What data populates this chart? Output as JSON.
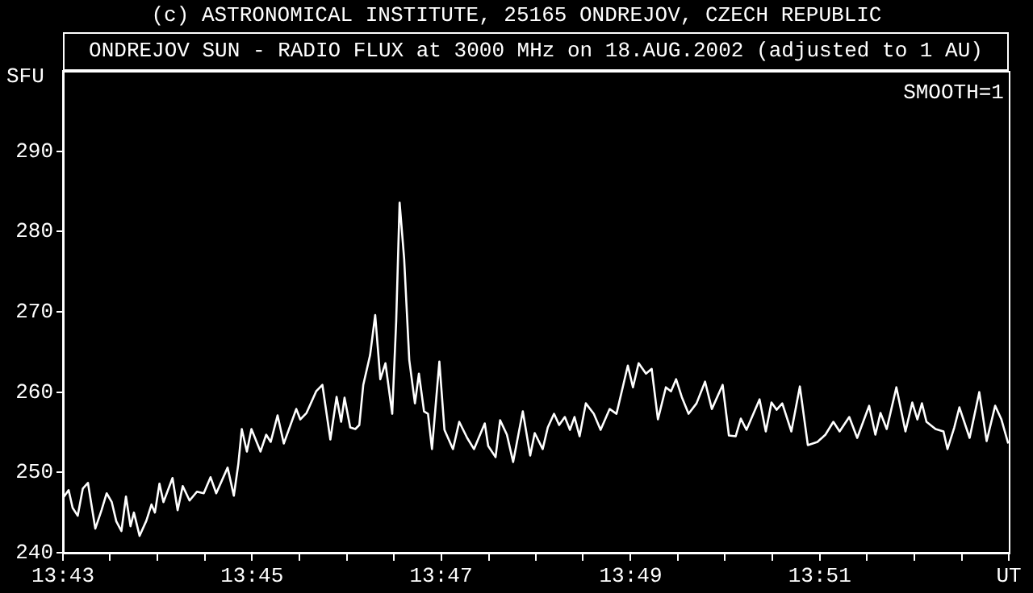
{
  "chart_data": {
    "type": "line",
    "title": "ONDREJOV SUN - RADIO FLUX at 3000 MHz on 18.AUG.2002 (adjusted to 1 AU)",
    "ylabel": "SFU",
    "annotations": [
      "(c) ASTRONOMICAL INSTITUTE, 25165 ONDREJOV, CZECH REPUBLIC",
      "SMOOTH=1"
    ],
    "xlim": [
      13.7167,
      13.8833
    ],
    "xticks": [
      {
        "value": 13.7167,
        "label": "13:43"
      },
      {
        "value": 13.725,
        "label": null
      },
      {
        "value": 13.7333,
        "label": null
      },
      {
        "value": 13.7417,
        "label": null
      },
      {
        "value": 13.75,
        "label": "13:45"
      },
      {
        "value": 13.7583,
        "label": null
      },
      {
        "value": 13.7667,
        "label": null
      },
      {
        "value": 13.775,
        "label": null
      },
      {
        "value": 13.7833,
        "label": "13:47"
      },
      {
        "value": 13.7917,
        "label": null
      },
      {
        "value": 13.8,
        "label": null
      },
      {
        "value": 13.8083,
        "label": null
      },
      {
        "value": 13.8167,
        "label": "13:49"
      },
      {
        "value": 13.825,
        "label": null
      },
      {
        "value": 13.8333,
        "label": null
      },
      {
        "value": 13.8417,
        "label": null
      },
      {
        "value": 13.85,
        "label": "13:51"
      },
      {
        "value": 13.8583,
        "label": null
      },
      {
        "value": 13.8667,
        "label": null
      },
      {
        "value": 13.875,
        "label": null
      },
      {
        "value": 13.8833,
        "label": "UT"
      }
    ],
    "ylim": [
      240,
      300
    ],
    "yticks": [
      240,
      250,
      260,
      270,
      280,
      290
    ],
    "grid": false,
    "legend": false,
    "marker": "none",
    "line_style": "solid",
    "series": [
      {
        "color": "#ffffff",
        "x": [
          13.7168,
          13.7177,
          13.7184,
          13.7193,
          13.7202,
          13.7211,
          13.7224,
          13.7235,
          13.7244,
          13.7253,
          13.7261,
          13.727,
          13.7278,
          13.7286,
          13.7292,
          13.7302,
          13.7314,
          13.7323,
          13.7329,
          13.7337,
          13.7344,
          13.736,
          13.7369,
          13.7378,
          13.739,
          13.7403,
          13.7415,
          13.7427,
          13.7437,
          13.7457,
          13.7468,
          13.7476,
          13.7482,
          13.7491,
          13.7499,
          13.7515,
          13.7525,
          13.7533,
          13.7545,
          13.7556,
          13.7578,
          13.7585,
          13.7596,
          13.7613,
          13.7624,
          13.7638,
          13.7649,
          13.7657,
          13.7663,
          13.7673,
          13.7682,
          13.7689,
          13.7696,
          13.7708,
          13.7717,
          13.7726,
          13.7735,
          13.7747,
          13.7754,
          13.776,
          13.7768,
          13.7777,
          13.7787,
          13.7794,
          13.7803,
          13.781,
          13.7817,
          13.783,
          13.7839,
          13.7854,
          13.7865,
          13.7879,
          13.7891,
          13.791,
          13.7916,
          13.7929,
          13.7937,
          13.7949,
          13.796,
          13.7977,
          13.799,
          13.7998,
          13.8012,
          13.8021,
          13.8032,
          13.8041,
          13.8051,
          13.806,
          13.8068,
          13.8077,
          13.8088,
          13.8102,
          13.8114,
          13.813,
          13.8142,
          13.8162,
          13.8171,
          13.8181,
          13.8194,
          13.8204,
          13.8215,
          13.8229,
          13.8238,
          13.8247,
          13.8257,
          13.8269,
          13.8283,
          13.8298,
          13.831,
          13.8329,
          13.834,
          13.8352,
          13.8361,
          13.8371,
          13.8394,
          13.8405,
          13.8415,
          13.8424,
          13.8434,
          13.845,
          13.8465,
          13.8479,
          13.8496,
          13.851,
          13.8524,
          13.8535,
          13.8552,
          13.8566,
          13.8587,
          13.8598,
          13.8607,
          13.8618,
          13.8635,
          13.8651,
          13.8663,
          13.8672,
          13.868,
          13.8688,
          13.8704,
          13.8718,
          13.8725,
          13.8737,
          13.8746,
          13.8764,
          13.8781,
          13.8794,
          13.8809,
          13.882,
          13.8832
        ],
        "values": [
          246.9,
          247.8,
          245.6,
          244.6,
          248,
          248.7,
          243,
          245.3,
          247.4,
          246.3,
          243.9,
          242.7,
          247,
          243.3,
          245,
          242.1,
          244,
          246,
          245,
          248.6,
          246.3,
          249.3,
          245.3,
          248.3,
          246.5,
          247.6,
          247.4,
          249.4,
          247.4,
          250.6,
          247.1,
          251.1,
          255.4,
          252.6,
          255.4,
          252.6,
          254.7,
          253.8,
          257.1,
          253.6,
          257.9,
          256.6,
          257.4,
          260.1,
          260.9,
          254.1,
          259.4,
          256.3,
          259.3,
          255.6,
          255.4,
          255.9,
          260.9,
          264.6,
          269.6,
          261.6,
          263.6,
          257.3,
          268.9,
          283.6,
          276.6,
          264,
          258.6,
          262.3,
          257.6,
          257.3,
          252.9,
          263.8,
          255.3,
          252.9,
          256.3,
          254.3,
          252.9,
          256.1,
          253.3,
          251.9,
          256.5,
          254.7,
          251.3,
          257.6,
          252.1,
          254.9,
          252.9,
          255.6,
          257.3,
          255.9,
          256.9,
          255.3,
          256.9,
          254.5,
          258.6,
          257.3,
          255.3,
          257.9,
          257.3,
          263.3,
          260.6,
          263.6,
          262.3,
          262.9,
          256.6,
          260.6,
          260.1,
          261.6,
          259.4,
          257.3,
          258.6,
          261.3,
          257.9,
          260.9,
          254.6,
          254.5,
          256.7,
          255.3,
          259.1,
          255.1,
          258.7,
          257.8,
          258.6,
          255.1,
          260.7,
          253.4,
          253.8,
          254.7,
          256.3,
          255.1,
          256.9,
          254.3,
          258.3,
          254.7,
          257.4,
          255.4,
          260.6,
          255.1,
          258.7,
          256.6,
          258.6,
          256.3,
          255.4,
          255.1,
          252.9,
          255.6,
          258.1,
          254.3,
          260,
          253.9,
          258.3,
          256.6,
          253.6
        ]
      }
    ]
  }
}
